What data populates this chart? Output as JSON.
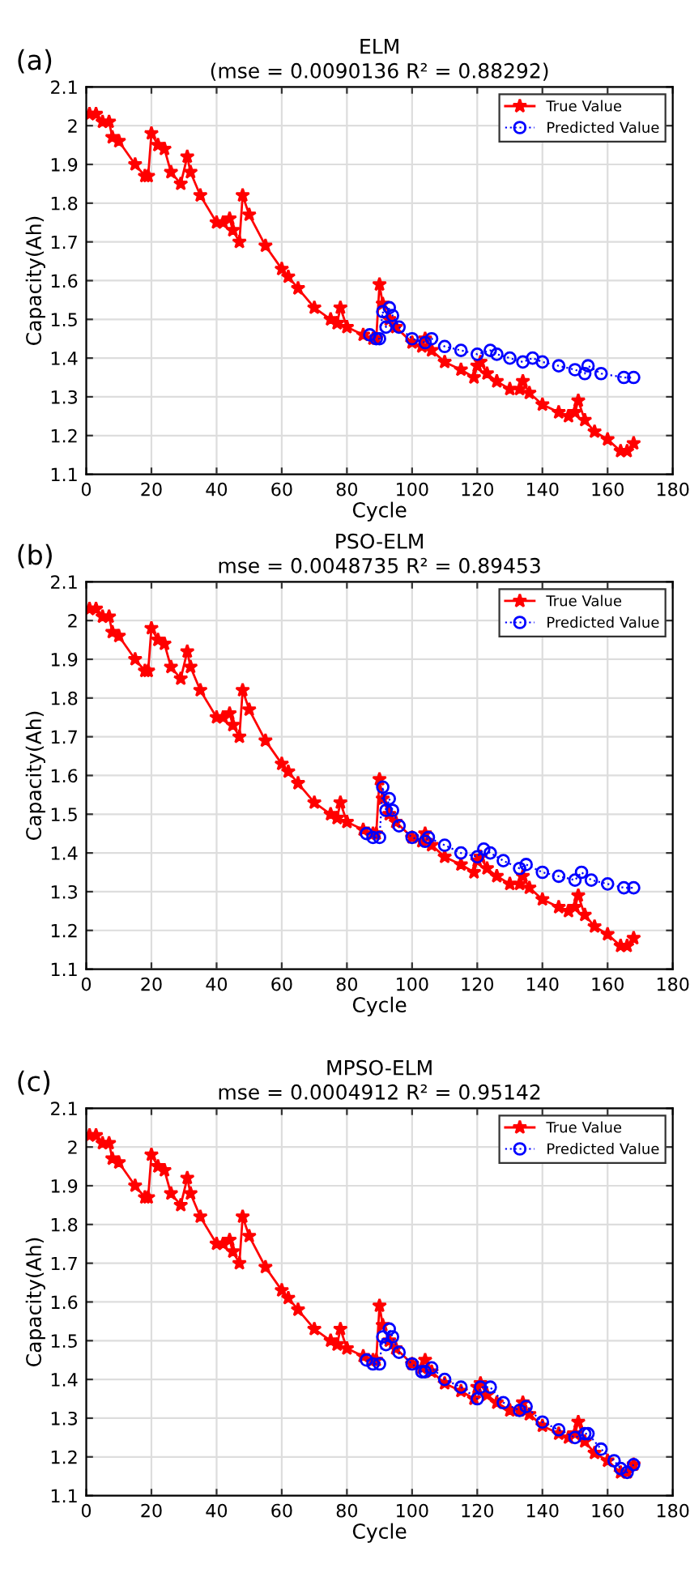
{
  "chart_data": [
    {
      "type": "line",
      "title": "ELM",
      "subtitle": "(mse = 0.0090136 R² = 0.88292)",
      "xlabel": "Cycle",
      "ylabel": "Capacity(Ah)",
      "annotations": [
        "(a)"
      ],
      "xlim": [
        0,
        180
      ],
      "xticks": [
        0,
        20,
        40,
        60,
        80,
        100,
        120,
        140,
        160,
        180
      ],
      "ylim": [
        1.1,
        2.1
      ],
      "yticks": [
        1.1,
        1.2,
        1.3,
        1.4,
        1.5,
        1.6,
        1.7,
        1.8,
        1.9,
        2,
        2.1
      ],
      "grid": true,
      "legend": "top right",
      "series": [
        {
          "name": "True Value",
          "color": "#ff0000",
          "marker": "star",
          "line_style": "solid",
          "x": [
            1,
            3,
            5,
            7,
            8,
            10,
            15,
            18,
            19,
            20,
            22,
            24,
            26,
            29,
            31,
            32,
            35,
            40,
            42,
            44,
            45,
            47,
            48,
            50,
            55,
            60,
            62,
            65,
            70,
            75,
            77,
            78,
            80,
            85,
            88,
            89,
            90,
            91,
            93,
            95,
            100,
            103,
            104,
            106,
            110,
            115,
            119,
            120,
            121,
            123,
            126,
            130,
            133,
            134,
            136,
            140,
            145,
            148,
            150,
            151,
            153,
            156,
            160,
            164,
            166,
            168
          ],
          "values": [
            2.03,
            2.03,
            2.01,
            2.01,
            1.97,
            1.96,
            1.9,
            1.87,
            1.87,
            1.98,
            1.95,
            1.94,
            1.88,
            1.85,
            1.92,
            1.88,
            1.82,
            1.75,
            1.75,
            1.76,
            1.73,
            1.7,
            1.82,
            1.77,
            1.69,
            1.63,
            1.61,
            1.58,
            1.53,
            1.5,
            1.49,
            1.53,
            1.48,
            1.46,
            1.45,
            1.45,
            1.59,
            1.54,
            1.5,
            1.48,
            1.44,
            1.43,
            1.45,
            1.42,
            1.39,
            1.37,
            1.35,
            1.38,
            1.39,
            1.36,
            1.34,
            1.32,
            1.32,
            1.34,
            1.31,
            1.28,
            1.26,
            1.25,
            1.26,
            1.29,
            1.24,
            1.21,
            1.19,
            1.16,
            1.16,
            1.18
          ]
        },
        {
          "name": "Predicted Value",
          "color": "#0000ff",
          "marker": "circle",
          "line_style": "dotted",
          "x": [
            87,
            89,
            90,
            91,
            92,
            93,
            94,
            96,
            100,
            104,
            106,
            110,
            115,
            120,
            124,
            126,
            130,
            134,
            137,
            140,
            145,
            150,
            153,
            154,
            158,
            165,
            168
          ],
          "values": [
            1.46,
            1.45,
            1.45,
            1.52,
            1.48,
            1.53,
            1.51,
            1.48,
            1.45,
            1.44,
            1.45,
            1.43,
            1.42,
            1.41,
            1.42,
            1.41,
            1.4,
            1.39,
            1.4,
            1.39,
            1.38,
            1.37,
            1.36,
            1.38,
            1.36,
            1.35,
            1.35
          ]
        }
      ]
    },
    {
      "type": "line",
      "title": "PSO-ELM",
      "subtitle": "mse = 0.0048735 R² = 0.89453",
      "xlabel": "Cycle",
      "ylabel": "Capacity(Ah)",
      "annotations": [
        "(b)"
      ],
      "xlim": [
        0,
        180
      ],
      "xticks": [
        0,
        20,
        40,
        60,
        80,
        100,
        120,
        140,
        160,
        180
      ],
      "ylim": [
        1.1,
        2.1
      ],
      "yticks": [
        1.1,
        1.2,
        1.3,
        1.4,
        1.5,
        1.6,
        1.7,
        1.8,
        1.9,
        2,
        2.1
      ],
      "grid": true,
      "legend": "top right",
      "series": [
        {
          "name": "True Value",
          "color": "#ff0000",
          "marker": "star",
          "line_style": "solid",
          "x": [
            1,
            3,
            5,
            7,
            8,
            10,
            15,
            18,
            19,
            20,
            22,
            24,
            26,
            29,
            31,
            32,
            35,
            40,
            42,
            44,
            45,
            47,
            48,
            50,
            55,
            60,
            62,
            65,
            70,
            75,
            77,
            78,
            80,
            85,
            88,
            89,
            90,
            91,
            93,
            95,
            100,
            103,
            104,
            106,
            110,
            115,
            119,
            120,
            121,
            123,
            126,
            130,
            133,
            134,
            136,
            140,
            145,
            148,
            150,
            151,
            153,
            156,
            160,
            164,
            166,
            168
          ],
          "values": [
            2.03,
            2.03,
            2.01,
            2.01,
            1.97,
            1.96,
            1.9,
            1.87,
            1.87,
            1.98,
            1.95,
            1.94,
            1.88,
            1.85,
            1.92,
            1.88,
            1.82,
            1.75,
            1.75,
            1.76,
            1.73,
            1.7,
            1.82,
            1.77,
            1.69,
            1.63,
            1.61,
            1.58,
            1.53,
            1.5,
            1.49,
            1.53,
            1.48,
            1.46,
            1.45,
            1.45,
            1.59,
            1.54,
            1.5,
            1.48,
            1.44,
            1.43,
            1.45,
            1.42,
            1.39,
            1.37,
            1.35,
            1.38,
            1.39,
            1.36,
            1.34,
            1.32,
            1.32,
            1.34,
            1.31,
            1.28,
            1.26,
            1.25,
            1.26,
            1.29,
            1.24,
            1.21,
            1.19,
            1.16,
            1.16,
            1.18
          ]
        },
        {
          "name": "Predicted Value",
          "color": "#0000ff",
          "marker": "circle",
          "line_style": "dotted",
          "x": [
            86,
            88,
            90,
            91,
            92,
            93,
            94,
            96,
            100,
            104,
            105,
            110,
            115,
            120,
            122,
            124,
            128,
            133,
            135,
            140,
            145,
            150,
            152,
            155,
            160,
            165,
            168
          ],
          "values": [
            1.45,
            1.44,
            1.44,
            1.57,
            1.51,
            1.54,
            1.51,
            1.47,
            1.44,
            1.43,
            1.44,
            1.42,
            1.4,
            1.39,
            1.41,
            1.4,
            1.38,
            1.36,
            1.37,
            1.35,
            1.34,
            1.33,
            1.35,
            1.33,
            1.32,
            1.31,
            1.31
          ]
        }
      ]
    },
    {
      "type": "line",
      "title": "MPSO-ELM",
      "subtitle": "mse = 0.0004912 R² = 0.95142",
      "xlabel": "Cycle",
      "ylabel": "Capacity(Ah)",
      "annotations": [
        "(c)"
      ],
      "xlim": [
        0,
        180
      ],
      "xticks": [
        0,
        20,
        40,
        60,
        80,
        100,
        120,
        140,
        160,
        180
      ],
      "ylim": [
        1.1,
        2.1
      ],
      "yticks": [
        1.1,
        1.2,
        1.3,
        1.4,
        1.5,
        1.6,
        1.7,
        1.8,
        1.9,
        2,
        2.1
      ],
      "grid": true,
      "legend": "top right",
      "series": [
        {
          "name": "True Value",
          "color": "#ff0000",
          "marker": "star",
          "line_style": "solid",
          "x": [
            1,
            3,
            5,
            7,
            8,
            10,
            15,
            18,
            19,
            20,
            22,
            24,
            26,
            29,
            31,
            32,
            35,
            40,
            42,
            44,
            45,
            47,
            48,
            50,
            55,
            60,
            62,
            65,
            70,
            75,
            77,
            78,
            80,
            85,
            88,
            89,
            90,
            91,
            93,
            95,
            100,
            103,
            104,
            106,
            110,
            115,
            119,
            120,
            121,
            123,
            126,
            130,
            133,
            134,
            136,
            140,
            145,
            148,
            150,
            151,
            153,
            156,
            160,
            164,
            166,
            168
          ],
          "values": [
            2.03,
            2.03,
            2.01,
            2.01,
            1.97,
            1.96,
            1.9,
            1.87,
            1.87,
            1.98,
            1.95,
            1.94,
            1.88,
            1.85,
            1.92,
            1.88,
            1.82,
            1.75,
            1.75,
            1.76,
            1.73,
            1.7,
            1.82,
            1.77,
            1.69,
            1.63,
            1.61,
            1.58,
            1.53,
            1.5,
            1.49,
            1.53,
            1.48,
            1.46,
            1.45,
            1.45,
            1.59,
            1.54,
            1.5,
            1.48,
            1.44,
            1.43,
            1.45,
            1.42,
            1.39,
            1.37,
            1.35,
            1.38,
            1.39,
            1.36,
            1.34,
            1.32,
            1.32,
            1.34,
            1.31,
            1.28,
            1.26,
            1.25,
            1.26,
            1.29,
            1.24,
            1.21,
            1.19,
            1.16,
            1.16,
            1.18
          ]
        },
        {
          "name": "Predicted Value",
          "color": "#0000ff",
          "marker": "circle",
          "line_style": "dotted",
          "x": [
            86,
            88,
            90,
            91,
            92,
            93,
            94,
            96,
            100,
            103,
            104,
            106,
            110,
            115,
            120,
            121,
            124,
            128,
            133,
            135,
            140,
            145,
            150,
            153,
            154,
            158,
            162,
            164,
            166,
            168
          ],
          "values": [
            1.45,
            1.44,
            1.44,
            1.51,
            1.49,
            1.53,
            1.51,
            1.47,
            1.44,
            1.42,
            1.42,
            1.43,
            1.4,
            1.38,
            1.35,
            1.38,
            1.38,
            1.34,
            1.32,
            1.33,
            1.29,
            1.27,
            1.25,
            1.26,
            1.26,
            1.22,
            1.19,
            1.17,
            1.16,
            1.18
          ]
        }
      ]
    }
  ]
}
